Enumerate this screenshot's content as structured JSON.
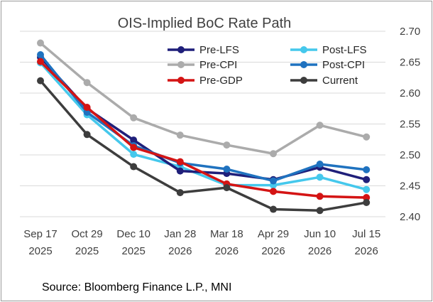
{
  "source_text": "Source: Bloomberg Finance L.P., MNI",
  "chart_data": {
    "type": "line",
    "title": "OIS-Implied BoC Rate Path",
    "xlabel": "",
    "ylabel": "",
    "categories": [
      [
        "Sep 17",
        "2025"
      ],
      [
        "Oct 29",
        "2025"
      ],
      [
        "Dec 10",
        "2025"
      ],
      [
        "Jan 28",
        "2026"
      ],
      [
        "Mar 18",
        "2026"
      ],
      [
        "Apr 29",
        "2026"
      ],
      [
        "Jun 10",
        "2026"
      ],
      [
        "Jul 15",
        "2026"
      ]
    ],
    "ylim": [
      2.4,
      2.7
    ],
    "yticks": [
      2.4,
      2.45,
      2.5,
      2.55,
      2.6,
      2.65,
      2.7
    ],
    "y_axis_side": "right",
    "grid": "horizontal",
    "legend_position": "top-right-inside",
    "series": [
      {
        "name": "Pre-LFS",
        "color": "#1f1f7a",
        "values": [
          2.658,
          2.575,
          2.524,
          2.474,
          2.47,
          2.46,
          2.48,
          2.46
        ]
      },
      {
        "name": "Post-LFS",
        "color": "#45c8ec",
        "values": [
          2.649,
          2.565,
          2.501,
          2.481,
          2.451,
          2.451,
          2.464,
          2.444
        ]
      },
      {
        "name": "Pre-CPI",
        "color": "#ababab",
        "values": [
          2.681,
          2.617,
          2.56,
          2.532,
          2.516,
          2.502,
          2.548,
          2.529
        ]
      },
      {
        "name": "Post-CPI",
        "color": "#1f72bf",
        "values": [
          2.662,
          2.569,
          2.515,
          2.487,
          2.477,
          2.458,
          2.485,
          2.476
        ]
      },
      {
        "name": "Pre-GDP",
        "color": "#d41414",
        "values": [
          2.651,
          2.577,
          2.512,
          2.489,
          2.453,
          2.441,
          2.433,
          2.431
        ]
      },
      {
        "name": "Current",
        "color": "#3d3d3d",
        "values": [
          2.62,
          2.533,
          2.481,
          2.439,
          2.447,
          2.412,
          2.41,
          2.423
        ]
      }
    ],
    "legend_order": [
      "Pre-LFS",
      "Post-LFS",
      "Pre-CPI",
      "Post-CPI",
      "Pre-GDP",
      "Current"
    ]
  }
}
